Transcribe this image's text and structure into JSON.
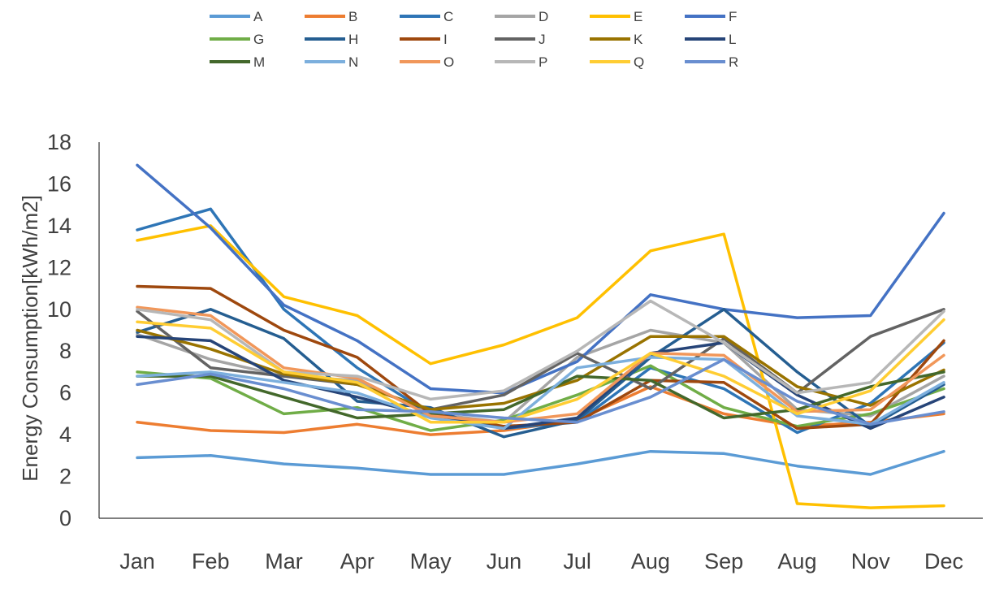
{
  "chart_data": {
    "type": "line",
    "title": "",
    "xlabel": "",
    "ylabel": "Energy Consumption[kWh/m2]",
    "ylim": [
      0,
      18
    ],
    "yticks": [
      0,
      2,
      4,
      6,
      8,
      10,
      12,
      14,
      16,
      18
    ],
    "grid": false,
    "legend_position": "top",
    "categories": [
      "Jan",
      "Feb",
      "Mar",
      "Apr",
      "May",
      "Jun",
      "Jul",
      "Aug",
      "Sep",
      "Aug",
      "Nov",
      "Dec"
    ],
    "series": [
      {
        "name": "A",
        "color": "#5b9bd5",
        "values": [
          2.9,
          3.0,
          2.6,
          2.4,
          2.1,
          2.1,
          2.6,
          3.2,
          3.1,
          2.5,
          2.1,
          3.2
        ]
      },
      {
        "name": "B",
        "color": "#ed7d31",
        "values": [
          4.6,
          4.2,
          4.1,
          4.5,
          4.0,
          4.2,
          4.7,
          6.3,
          5.0,
          4.4,
          4.6,
          5.0
        ]
      },
      {
        "name": "C",
        "color": "#2e75b6",
        "values": [
          13.8,
          14.8,
          10.0,
          7.2,
          5.0,
          4.3,
          4.6,
          7.2,
          6.2,
          4.1,
          5.5,
          8.4
        ]
      },
      {
        "name": "D",
        "color": "#a5a5a5",
        "values": [
          8.8,
          7.6,
          6.8,
          6.6,
          5.0,
          4.6,
          7.7,
          9.0,
          8.4,
          5.2,
          4.9,
          6.8
        ]
      },
      {
        "name": "E",
        "color": "#ffc000",
        "values": [
          13.3,
          14.0,
          10.6,
          9.7,
          7.4,
          8.3,
          9.6,
          12.8,
          13.6,
          0.7,
          0.5,
          0.6
        ]
      },
      {
        "name": "F",
        "color": "#4472c4",
        "values": [
          16.9,
          13.9,
          10.2,
          8.5,
          6.2,
          6.0,
          7.5,
          10.7,
          10.0,
          9.6,
          9.7,
          14.6
        ]
      },
      {
        "name": "G",
        "color": "#70ad47",
        "values": [
          7.0,
          6.7,
          5.0,
          5.3,
          4.2,
          4.7,
          5.9,
          7.3,
          5.3,
          4.4,
          5.0,
          6.2
        ]
      },
      {
        "name": "H",
        "color": "#255e91",
        "values": [
          8.9,
          10.0,
          8.6,
          5.6,
          5.3,
          3.9,
          4.7,
          7.7,
          10.0,
          7.0,
          4.4,
          6.4
        ]
      },
      {
        "name": "I",
        "color": "#9e480e",
        "values": [
          11.1,
          11.0,
          9.0,
          7.7,
          5.0,
          4.4,
          4.6,
          6.6,
          6.5,
          4.3,
          4.5,
          8.5
        ]
      },
      {
        "name": "J",
        "color": "#636363",
        "values": [
          9.9,
          7.2,
          6.8,
          6.4,
          5.2,
          5.9,
          7.9,
          6.2,
          8.6,
          6.0,
          8.7,
          10.0
        ]
      },
      {
        "name": "K",
        "color": "#997300",
        "values": [
          9.0,
          8.1,
          6.9,
          6.4,
          5.2,
          5.5,
          6.6,
          8.7,
          8.7,
          6.3,
          5.4,
          7.1
        ]
      },
      {
        "name": "L",
        "color": "#264478",
        "values": [
          8.7,
          8.5,
          6.6,
          5.8,
          4.9,
          4.3,
          4.8,
          7.9,
          8.4,
          5.9,
          4.3,
          5.8
        ]
      },
      {
        "name": "M",
        "color": "#43682b",
        "values": [
          6.8,
          6.8,
          5.8,
          4.8,
          5.0,
          5.2,
          6.8,
          6.6,
          4.8,
          5.2,
          6.3,
          7.0
        ]
      },
      {
        "name": "N",
        "color": "#7cafdd",
        "values": [
          6.8,
          7.0,
          6.5,
          6.0,
          4.8,
          4.3,
          7.2,
          7.7,
          7.6,
          4.9,
          4.5,
          6.5
        ]
      },
      {
        "name": "O",
        "color": "#f1975a",
        "values": [
          10.1,
          9.7,
          7.2,
          6.7,
          4.9,
          4.6,
          5.0,
          7.9,
          7.8,
          5.1,
          5.2,
          7.8
        ]
      },
      {
        "name": "P",
        "color": "#b7b7b7",
        "values": [
          10.0,
          9.5,
          7.0,
          6.8,
          5.7,
          6.1,
          8.0,
          10.4,
          8.4,
          6.0,
          6.5,
          9.9
        ]
      },
      {
        "name": "Q",
        "color": "#ffcd33",
        "values": [
          9.4,
          9.1,
          7.0,
          6.5,
          4.6,
          4.6,
          5.7,
          7.9,
          6.8,
          5.0,
          6.1,
          9.5
        ]
      },
      {
        "name": "R",
        "color": "#698ed0",
        "values": [
          6.4,
          6.9,
          6.2,
          5.2,
          5.1,
          4.8,
          4.6,
          5.8,
          7.6,
          5.6,
          4.5,
          5.1
        ]
      }
    ]
  }
}
